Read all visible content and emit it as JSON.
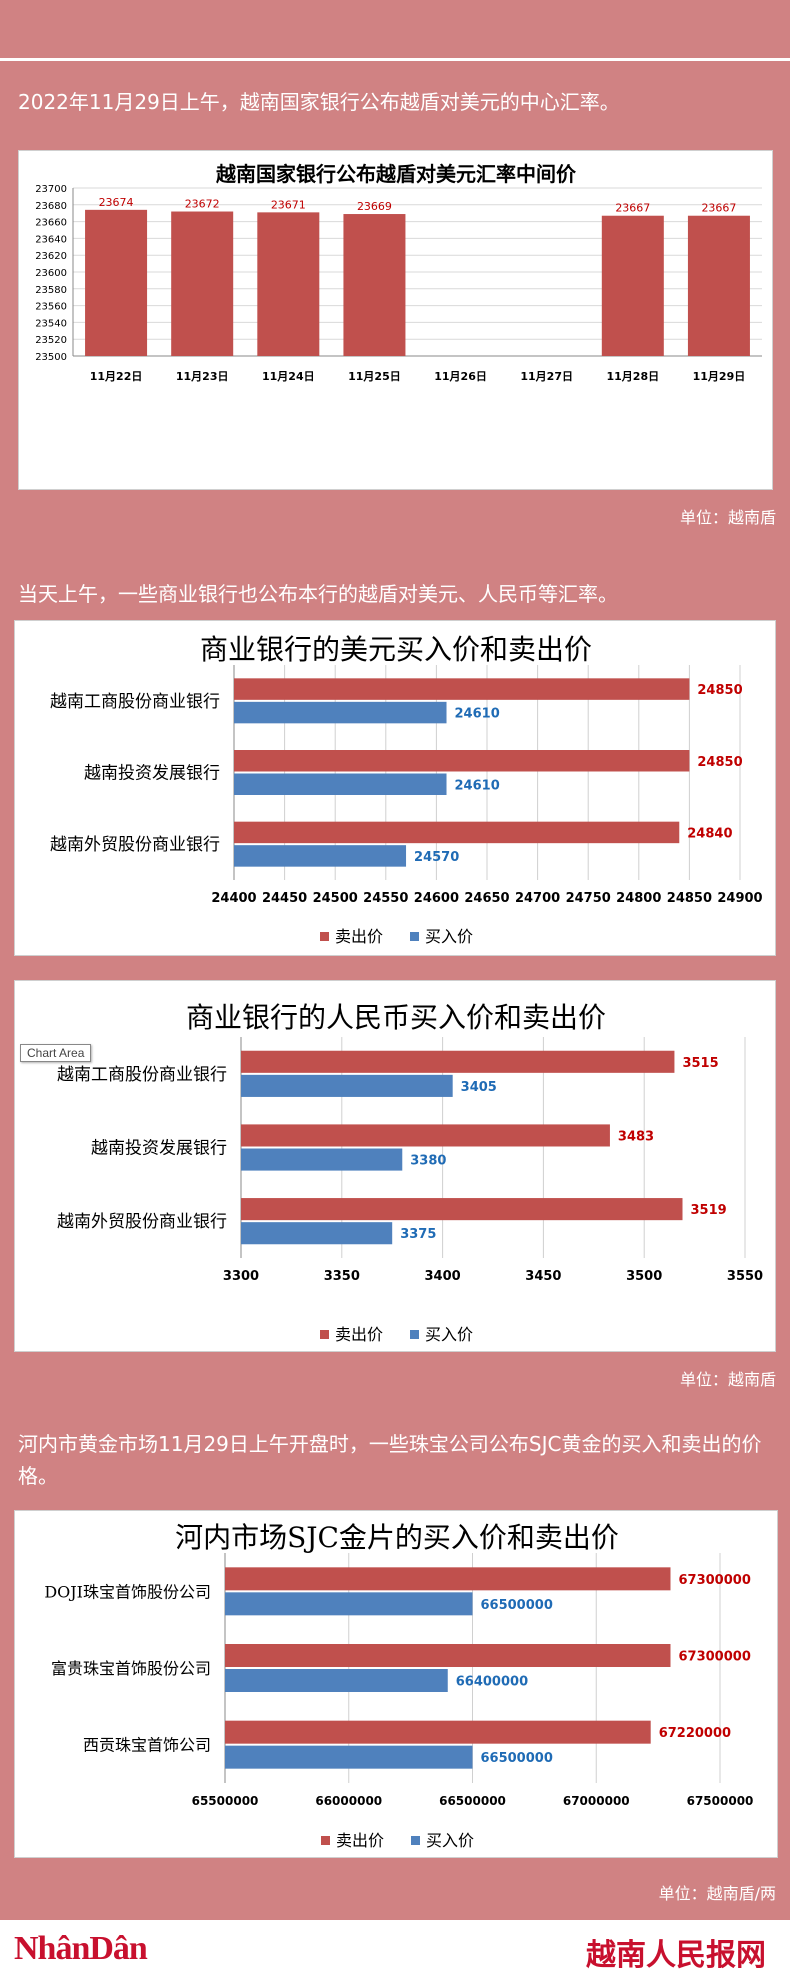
{
  "intro_1": "2022年11月29日上午，越南国家银行公布越盾对美元的中心汇率。",
  "intro_2": "当天上午，一些商业银行也公布本行的越盾对美元、人民币等汇率。",
  "intro_3": "河内市黄金市场11月29日上午开盘时，一些珠宝公司公布SJC黄金的买入和卖出的价格。",
  "unit_1": "单位：越南盾",
  "unit_2": "单位：越南盾",
  "unit_3": "单位：越南盾/两",
  "chart_area_tip": "Chart Area",
  "footer": {
    "logo_left": "NhânDân",
    "logo_right": "越南人民报网"
  },
  "colors": {
    "sell": "#c0504d",
    "buy": "#4f81bd",
    "sell_label": "#c00000",
    "buy_label": "#1f6bb5"
  },
  "chart_data": [
    {
      "type": "bar",
      "title": "越南国家银行公布越盾对美元汇率中间价",
      "categories": [
        "11月22日",
        "11月23日",
        "11月24日",
        "11月25日",
        "11月26日",
        "11月27日",
        "11月28日",
        "11月29日"
      ],
      "values": [
        23674,
        23672,
        23671,
        23669,
        null,
        null,
        23667,
        23667
      ],
      "ylim": [
        23500,
        23700
      ],
      "yticks": [
        23500,
        23520,
        23540,
        23560,
        23580,
        23600,
        23620,
        23640,
        23660,
        23680,
        23700
      ],
      "grid": true
    },
    {
      "type": "bar",
      "orientation": "horizontal",
      "title": "商业银行的美元买入价和卖出价",
      "categories": [
        "越南工商股份商业银行",
        "越南投资发展银行",
        "越南外贸股份商业银行"
      ],
      "series": [
        {
          "name": "卖出价",
          "values": [
            24850,
            24850,
            24840
          ]
        },
        {
          "name": "买入价",
          "values": [
            24610,
            24610,
            24570
          ]
        }
      ],
      "xlim": [
        24400,
        24900
      ],
      "xticks": [
        24400,
        24450,
        24500,
        24550,
        24600,
        24650,
        24700,
        24750,
        24800,
        24850,
        24900
      ],
      "legend": "bottom"
    },
    {
      "type": "bar",
      "orientation": "horizontal",
      "title": "商业银行的人民币买入价和卖出价",
      "categories": [
        "越南工商股份商业银行",
        "越南投资发展银行",
        "越南外贸股份商业银行"
      ],
      "series": [
        {
          "name": "卖出价",
          "values": [
            3515,
            3483,
            3519
          ]
        },
        {
          "name": "买入价",
          "values": [
            3405,
            3380,
            3375
          ]
        }
      ],
      "xlim": [
        3300,
        3550
      ],
      "xticks": [
        3300,
        3350,
        3400,
        3450,
        3500,
        3550
      ],
      "legend": "bottom"
    },
    {
      "type": "bar",
      "orientation": "horizontal",
      "title": "河内市场SJC金片的买入价和卖出价",
      "categories": [
        "DOJI珠宝首饰股份公司",
        "富贵珠宝首饰股份公司",
        "西贡珠宝首饰公司"
      ],
      "series": [
        {
          "name": "卖出价",
          "values": [
            67300000,
            67300000,
            67220000
          ]
        },
        {
          "name": "买入价",
          "values": [
            66500000,
            66400000,
            66500000
          ]
        }
      ],
      "xlim": [
        65500000,
        67500000
      ],
      "xticks": [
        65500000,
        66000000,
        66500000,
        67000000,
        67500000
      ],
      "legend": "bottom"
    }
  ]
}
